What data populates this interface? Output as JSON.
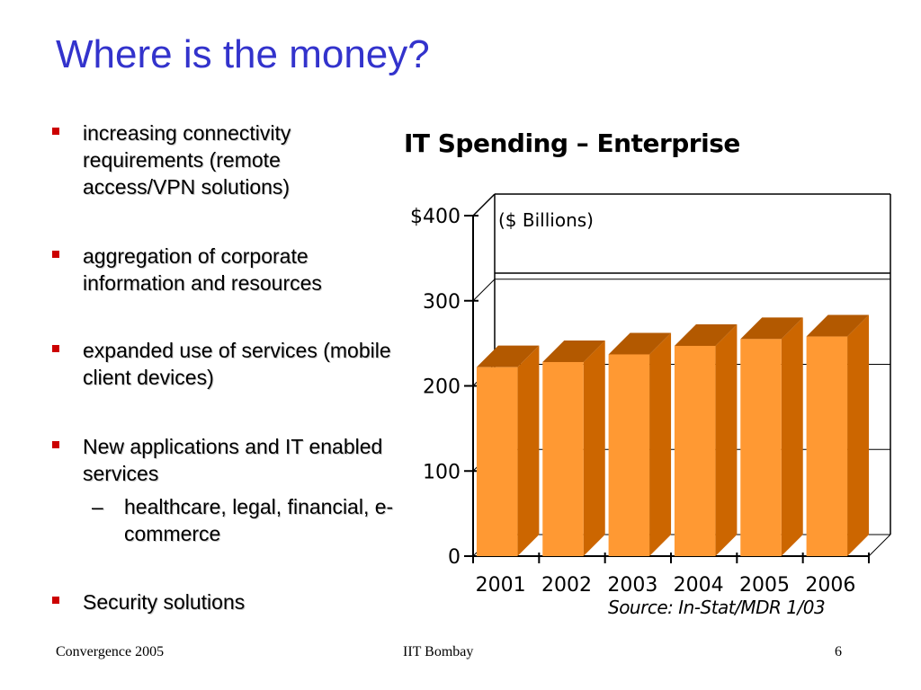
{
  "title": "Where is the money?",
  "bullets": [
    {
      "text": "increasing connectivity requirements (remote access/VPN solutions)"
    },
    {
      "text": "aggregation of corporate information and resources"
    },
    {
      "text": "expanded use of services (mobile client devices)"
    },
    {
      "text": "New applications and IT enabled services",
      "sub": "healthcare, legal, financial, e-commerce"
    },
    {
      "text": "Security solutions"
    }
  ],
  "footer": {
    "left": "Convergence 2005",
    "center": "IIT Bombay",
    "right": "6"
  },
  "colors": {
    "title": "#3333cc",
    "bullet_marker": "#cc0000",
    "bar_front": "#ff9933",
    "bar_side": "#cc6600",
    "bar_top": "#b35900"
  },
  "chart_data": {
    "type": "bar",
    "title": "IT Spending – Enterprise",
    "annotation": "($ Billions)",
    "source": "Source: In-Stat/MDR 1/03",
    "categories": [
      "2001",
      "2002",
      "2003",
      "2004",
      "2005",
      "2006"
    ],
    "values": [
      222,
      228,
      237,
      247,
      255,
      258
    ],
    "yticks": [
      "0",
      "100",
      "200",
      "300",
      "$400"
    ],
    "ylim": [
      0,
      400
    ],
    "grid": true,
    "style": "3d"
  }
}
